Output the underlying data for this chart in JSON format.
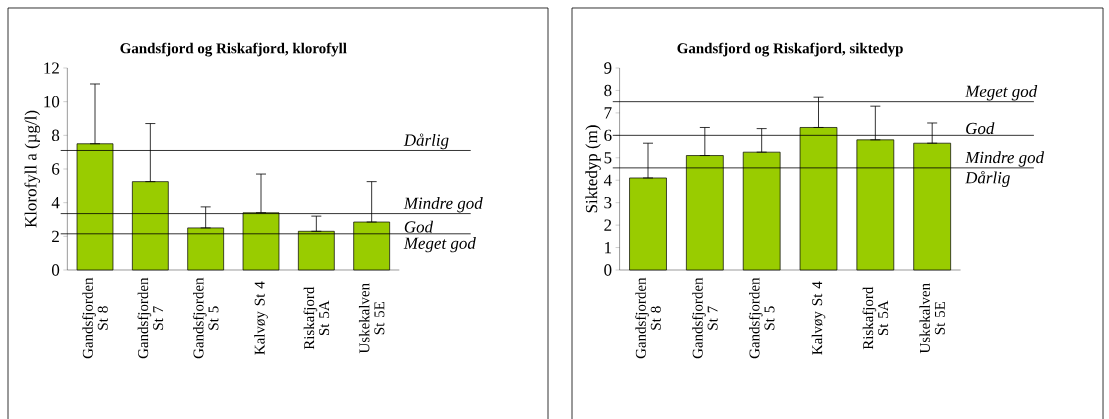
{
  "chart_data": [
    {
      "type": "bar",
      "title": "Gandsfjord og Riskafjord, klorofyll",
      "ylabel": "Klorofyll a (µg/l)",
      "categories": [
        "Gandsfjorden St 8",
        "Gandsfjorden St 7",
        "Gandsfjorden St 5",
        "Kalvøy St 4",
        "Riskafjord St 5A",
        "Uskekalven St 5E"
      ],
      "values": [
        7.5,
        5.25,
        2.5,
        3.4,
        2.3,
        2.85
      ],
      "color": "#99cc00",
      "errors": [
        [
          7.5,
          11.05
        ],
        [
          5.25,
          8.7
        ],
        [
          2.5,
          3.75
        ],
        [
          3.4,
          5.7
        ],
        [
          2.3,
          3.2
        ],
        [
          2.85,
          5.25
        ]
      ],
      "ylim": [
        0,
        12
      ],
      "yticks": [
        0,
        2,
        4,
        6,
        8,
        10,
        12
      ],
      "ref_lines": [
        {
          "axis": "y",
          "value": 7.1,
          "label": "Dårlig",
          "color": "#000000"
        },
        {
          "axis": "y",
          "value": 3.35,
          "label": "Mindre god",
          "color": "#000000"
        },
        {
          "axis": "y",
          "value": 2.15,
          "label": "God",
          "color": "#000000"
        }
      ],
      "annotations": [
        "Meget god"
      ]
    },
    {
      "type": "bar",
      "title": "Gandsfjord og Riskafjord, siktedyp",
      "ylabel": "Siktedyp (m)",
      "categories": [
        "Gandsfjorden St 8",
        "Gandsfjorden St 7",
        "Gandsfjorden St 5",
        "Kalvøy St 4",
        "Riskafjord St 5A",
        "Uskekalven St 5E"
      ],
      "values": [
        4.1,
        5.1,
        5.25,
        6.35,
        5.8,
        5.65
      ],
      "color": "#99cc00",
      "errors": [
        [
          4.1,
          5.65
        ],
        [
          5.1,
          6.35
        ],
        [
          5.25,
          6.3
        ],
        [
          6.35,
          7.7
        ],
        [
          5.8,
          7.3
        ],
        [
          5.65,
          6.55
        ]
      ],
      "ylim": [
        0,
        9
      ],
      "yticks": [
        0,
        1,
        2,
        3,
        4,
        5,
        6,
        7,
        8,
        9
      ],
      "ref_lines": [
        {
          "axis": "y",
          "value": 7.5,
          "label": "Meget god",
          "color": "#000000"
        },
        {
          "axis": "y",
          "value": 6.0,
          "label": "God",
          "color": "#000000"
        },
        {
          "axis": "y",
          "value": 4.55,
          "label": "Mindre god",
          "color": "#000000"
        }
      ],
      "annotations": [
        "Dårlig"
      ]
    }
  ]
}
